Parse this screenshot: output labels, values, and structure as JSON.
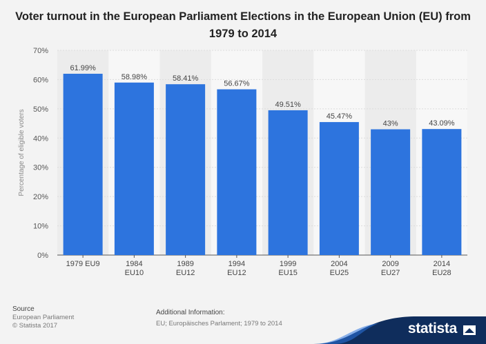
{
  "title": "Voter turnout in the European Parliament Elections in the European Union (EU) from 1979 to 2014",
  "chart_data": {
    "type": "bar",
    "title": "Voter turnout in the European Parliament Elections in the European Union (EU) from 1979 to 2014",
    "xlabel": "",
    "ylabel": "Percentage of eligible voters",
    "categories": [
      [
        "1979 EU9"
      ],
      [
        "1984",
        "EU10"
      ],
      [
        "1989",
        "EU12"
      ],
      [
        "1994",
        "EU12"
      ],
      [
        "1999",
        "EU15"
      ],
      [
        "2004",
        "EU25"
      ],
      [
        "2009",
        "EU27"
      ],
      [
        "2014",
        "EU28"
      ]
    ],
    "values": [
      61.99,
      58.98,
      58.41,
      56.67,
      49.51,
      45.47,
      43,
      43.09
    ],
    "value_labels": [
      "61.99%",
      "58.98%",
      "58.41%",
      "56.67%",
      "49.51%",
      "45.47%",
      "43%",
      "43.09%"
    ],
    "ylim": [
      0,
      70
    ],
    "yticks": [
      0,
      10,
      20,
      30,
      40,
      50,
      60,
      70
    ],
    "ytick_labels": [
      "0%",
      "10%",
      "20%",
      "30%",
      "40%",
      "50%",
      "60%",
      "70%"
    ],
    "grid": true,
    "colors": {
      "bar": "#2d74de",
      "grid": "#dcdcdc",
      "band": "#ececec",
      "plot_bg": "#f7f7f7"
    }
  },
  "footer": {
    "source_header": "Source",
    "source_lines": [
      "European Parliament",
      "© Statista 2017"
    ],
    "info_header": "Additional Information:",
    "info_text": "EU; Europäisches Parlament; 1979 to 2014"
  },
  "brand": {
    "name": "statista",
    "color": "#0f2d5c"
  }
}
